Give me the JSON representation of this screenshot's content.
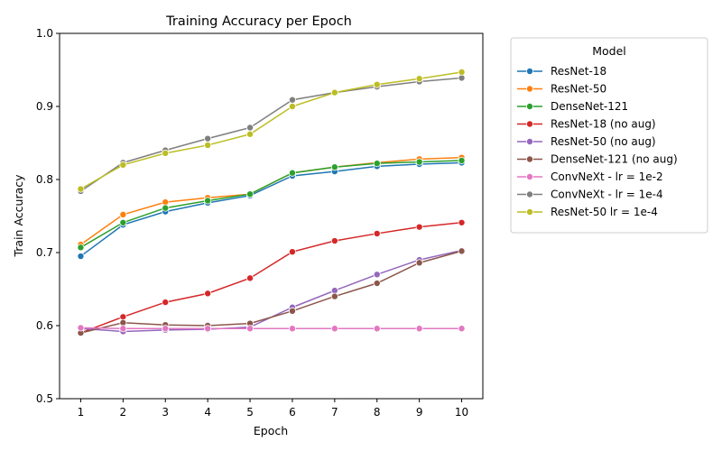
{
  "chart_data": {
    "type": "line",
    "title": "Training Accuracy per Epoch",
    "xlabel": "Epoch",
    "ylabel": "Train Accuracy",
    "x": [
      1,
      2,
      3,
      4,
      5,
      6,
      7,
      8,
      9,
      10
    ],
    "xticks": [
      "1",
      "2",
      "3",
      "4",
      "5",
      "6",
      "7",
      "8",
      "9",
      "10"
    ],
    "ylim": [
      0.5,
      1.0
    ],
    "yticks": [
      "0.5",
      "0.6",
      "0.7",
      "0.8",
      "0.9",
      "1.0"
    ],
    "grid": false,
    "legend_title": "Model",
    "legend_position": "outside-right",
    "series": [
      {
        "name": "ResNet-18",
        "color": "#1f77b4",
        "values": [
          0.695,
          0.738,
          0.756,
          0.768,
          0.778,
          0.805,
          0.811,
          0.818,
          0.821,
          0.823
        ]
      },
      {
        "name": "ResNet-50",
        "color": "#ff7f0e",
        "values": [
          0.711,
          0.752,
          0.769,
          0.775,
          0.78,
          0.809,
          0.817,
          0.823,
          0.828,
          0.83
        ]
      },
      {
        "name": "DenseNet-121",
        "color": "#2ca02c",
        "values": [
          0.707,
          0.741,
          0.761,
          0.771,
          0.78,
          0.809,
          0.817,
          0.822,
          0.824,
          0.826
        ]
      },
      {
        "name": "ResNet-18 (no aug)",
        "color": "#d62728",
        "values": [
          0.59,
          0.612,
          0.632,
          0.644,
          0.665,
          0.701,
          0.716,
          0.726,
          0.735,
          0.741
        ]
      },
      {
        "name": "ResNet-50 (no aug)",
        "color": "#9467bd",
        "values": [
          0.596,
          0.592,
          0.594,
          0.595,
          0.598,
          0.625,
          0.648,
          0.67,
          0.69,
          0.703
        ]
      },
      {
        "name": "DenseNet-121 (no aug)",
        "color": "#8c564b",
        "values": [
          0.59,
          0.604,
          0.601,
          0.6,
          0.603,
          0.62,
          0.64,
          0.658,
          0.686,
          0.702
        ]
      },
      {
        "name": "ConvNeXt - lr = 1e-2",
        "color": "#e377c2",
        "values": [
          0.597,
          0.596,
          0.596,
          0.596,
          0.596,
          0.596,
          0.596,
          0.596,
          0.596,
          0.596
        ]
      },
      {
        "name": "ConvNeXt - lr = 1e-4",
        "color": "#7f7f7f",
        "values": [
          0.784,
          0.823,
          0.84,
          0.856,
          0.871,
          0.909,
          0.919,
          0.927,
          0.934,
          0.939
        ]
      },
      {
        "name": "ResNet-50 lr = 1e-4",
        "color": "#bcbd22",
        "values": [
          0.787,
          0.82,
          0.836,
          0.847,
          0.862,
          0.9,
          0.919,
          0.93,
          0.938,
          0.947
        ]
      }
    ]
  }
}
